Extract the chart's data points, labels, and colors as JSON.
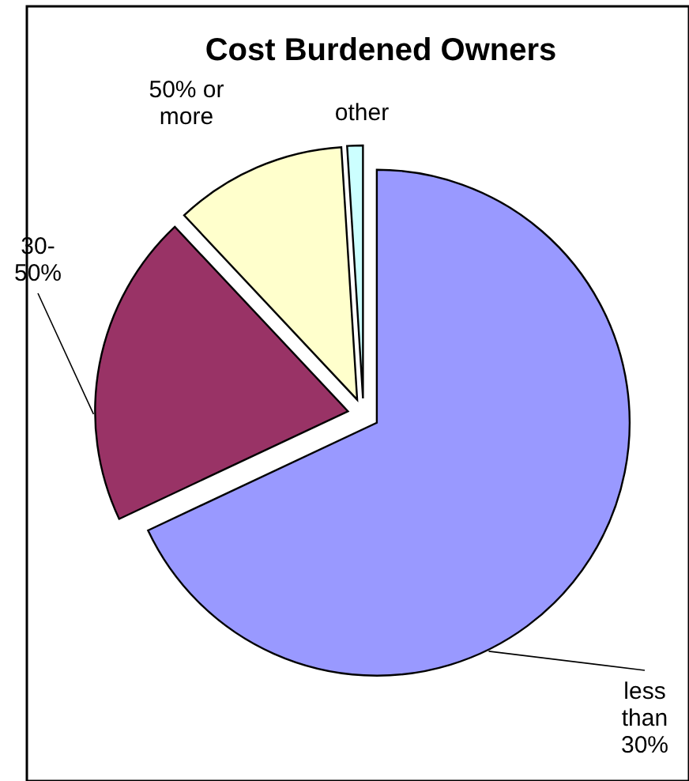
{
  "chart_data": {
    "type": "pie",
    "title": "Cost Burdened Owners",
    "categories": [
      "less\nthan\n30%",
      "30-\n50%",
      "50% or\nmore",
      "other"
    ],
    "values": [
      68,
      20,
      11,
      1
    ],
    "colors": [
      "#9999ff",
      "#993366",
      "#ffffcc",
      "#ccffff"
    ]
  }
}
